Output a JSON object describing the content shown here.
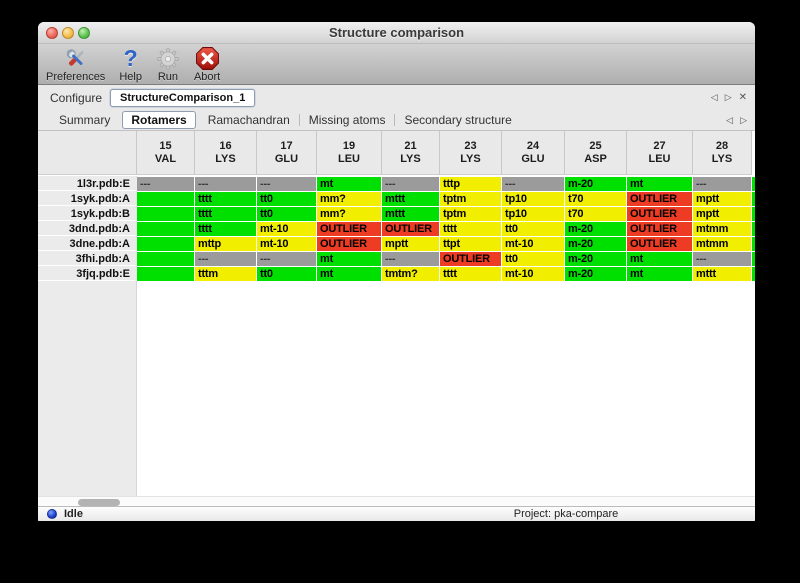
{
  "window": {
    "title": "Structure comparison"
  },
  "toolbar": {
    "items": [
      {
        "label": "Preferences",
        "icon": "tools-icon"
      },
      {
        "label": "Help",
        "icon": "help-icon",
        "glyph": "?"
      },
      {
        "label": "Run",
        "icon": "gear-icon"
      },
      {
        "label": "Abort",
        "icon": "abort-icon"
      }
    ]
  },
  "configure": {
    "label": "Configure",
    "selected_config": "StructureComparison_1",
    "nav": {
      "prev": "◁",
      "next": "▷",
      "close": "✕"
    }
  },
  "tabs": {
    "items": [
      "Summary",
      "Rotamers",
      "Ramachandran",
      "Missing atoms",
      "Secondary structure"
    ],
    "selected": "Rotamers",
    "nav": {
      "prev": "◁",
      "next": "▷"
    }
  },
  "colors": {
    "g": "#00e000",
    "y": "#f2ee00",
    "r": "#ee3b23",
    "x": "#9b9b9b"
  },
  "table": {
    "columns": [
      {
        "num": "15",
        "res": "VAL"
      },
      {
        "num": "16",
        "res": "LYS"
      },
      {
        "num": "17",
        "res": "GLU"
      },
      {
        "num": "19",
        "res": "LEU"
      },
      {
        "num": "21",
        "res": "LYS"
      },
      {
        "num": "23",
        "res": "LYS"
      },
      {
        "num": "24",
        "res": "GLU"
      },
      {
        "num": "25",
        "res": "ASP"
      },
      {
        "num": "27",
        "res": "LEU"
      },
      {
        "num": "28",
        "res": "LYS"
      }
    ],
    "rows": [
      {
        "label": "1l3r.pdb:E",
        "cells": [
          {
            "t": "---",
            "c": "x"
          },
          {
            "t": "---",
            "c": "x"
          },
          {
            "t": "---",
            "c": "x"
          },
          {
            "t": "mt",
            "c": "g"
          },
          {
            "t": "---",
            "c": "x"
          },
          {
            "t": "tttp",
            "c": "y"
          },
          {
            "t": "---",
            "c": "x"
          },
          {
            "t": "m-20",
            "c": "g"
          },
          {
            "t": "mt",
            "c": "g"
          },
          {
            "t": "---",
            "c": "x"
          }
        ]
      },
      {
        "label": "1syk.pdb:A",
        "cells": [
          {
            "t": "",
            "c": "g"
          },
          {
            "t": "tttt",
            "c": "g"
          },
          {
            "t": "tt0",
            "c": "g"
          },
          {
            "t": "mm?",
            "c": "y"
          },
          {
            "t": "mttt",
            "c": "g"
          },
          {
            "t": "tptm",
            "c": "y"
          },
          {
            "t": "tp10",
            "c": "y"
          },
          {
            "t": "t70",
            "c": "y"
          },
          {
            "t": "OUTLIER",
            "c": "r"
          },
          {
            "t": "mptt",
            "c": "y"
          }
        ]
      },
      {
        "label": "1syk.pdb:B",
        "cells": [
          {
            "t": "",
            "c": "g"
          },
          {
            "t": "tttt",
            "c": "g"
          },
          {
            "t": "tt0",
            "c": "g"
          },
          {
            "t": "mm?",
            "c": "y"
          },
          {
            "t": "mttt",
            "c": "g"
          },
          {
            "t": "tptm",
            "c": "y"
          },
          {
            "t": "tp10",
            "c": "y"
          },
          {
            "t": "t70",
            "c": "y"
          },
          {
            "t": "OUTLIER",
            "c": "r"
          },
          {
            "t": "mptt",
            "c": "y"
          }
        ]
      },
      {
        "label": "3dnd.pdb:A",
        "cells": [
          {
            "t": "",
            "c": "g"
          },
          {
            "t": "tttt",
            "c": "g"
          },
          {
            "t": "mt-10",
            "c": "y"
          },
          {
            "t": "OUTLIER",
            "c": "r"
          },
          {
            "t": "OUTLIER",
            "c": "r"
          },
          {
            "t": "tttt",
            "c": "y"
          },
          {
            "t": "tt0",
            "c": "y"
          },
          {
            "t": "m-20",
            "c": "g"
          },
          {
            "t": "OUTLIER",
            "c": "r"
          },
          {
            "t": "mtmm",
            "c": "y"
          }
        ]
      },
      {
        "label": "3dne.pdb:A",
        "cells": [
          {
            "t": "",
            "c": "g"
          },
          {
            "t": "mttp",
            "c": "y"
          },
          {
            "t": "mt-10",
            "c": "y"
          },
          {
            "t": "OUTLIER",
            "c": "r"
          },
          {
            "t": "mptt",
            "c": "y"
          },
          {
            "t": "ttpt",
            "c": "y"
          },
          {
            "t": "mt-10",
            "c": "y"
          },
          {
            "t": "m-20",
            "c": "g"
          },
          {
            "t": "OUTLIER",
            "c": "r"
          },
          {
            "t": "mtmm",
            "c": "y"
          }
        ]
      },
      {
        "label": "3fhi.pdb:A",
        "cells": [
          {
            "t": "",
            "c": "g"
          },
          {
            "t": "---",
            "c": "x"
          },
          {
            "t": "---",
            "c": "x"
          },
          {
            "t": "mt",
            "c": "g"
          },
          {
            "t": "---",
            "c": "x"
          },
          {
            "t": "OUTLIER",
            "c": "r"
          },
          {
            "t": "tt0",
            "c": "y"
          },
          {
            "t": "m-20",
            "c": "g"
          },
          {
            "t": "mt",
            "c": "g"
          },
          {
            "t": "---",
            "c": "x"
          }
        ]
      },
      {
        "label": "3fjq.pdb:E",
        "cells": [
          {
            "t": "",
            "c": "g"
          },
          {
            "t": "tttm",
            "c": "y"
          },
          {
            "t": "tt0",
            "c": "g"
          },
          {
            "t": "mt",
            "c": "g"
          },
          {
            "t": "tmtm?",
            "c": "y"
          },
          {
            "t": "tttt",
            "c": "y"
          },
          {
            "t": "mt-10",
            "c": "y"
          },
          {
            "t": "m-20",
            "c": "g"
          },
          {
            "t": "mt",
            "c": "g"
          },
          {
            "t": "mttt",
            "c": "y"
          }
        ]
      }
    ],
    "overflow_column_color": "g"
  },
  "statusbar": {
    "status": "Idle",
    "project": "Project: pka-compare"
  }
}
